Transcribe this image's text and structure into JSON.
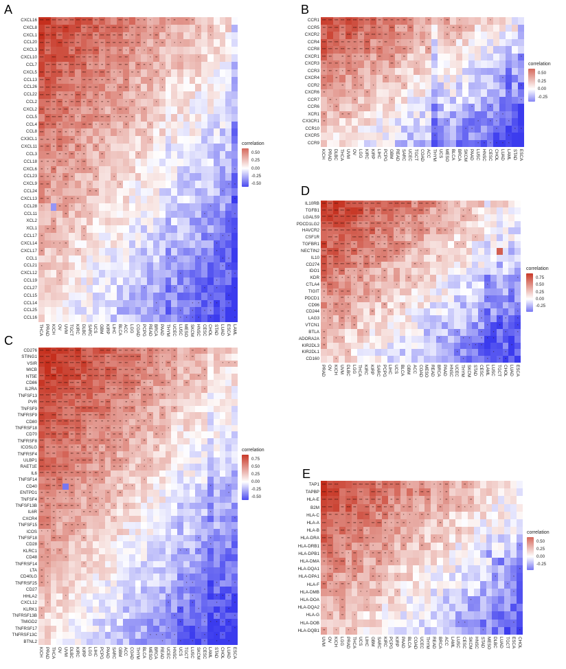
{
  "figure": {
    "background": "#ffffff"
  },
  "colors": {
    "positive_max": "#c52f1d",
    "negative_max": "#3b3bee",
    "mid": "#ffffff",
    "star": "#3d1408"
  },
  "chart_data": [
    {
      "id": "A",
      "type": "heatmap",
      "genes": [
        "CXCL16",
        "CXCL8",
        "CXCL1",
        "CCL20",
        "CXCL3",
        "CXCL10",
        "CCL7",
        "CXCL5",
        "CCL13",
        "CCL26",
        "CCL22",
        "CCL2",
        "CXCL2",
        "CCL5",
        "CCL4",
        "CCL8",
        "CX3CL1",
        "CXCL11",
        "CCL3",
        "CCL18",
        "CXCL6",
        "CCL23",
        "CXCL9",
        "CCL24",
        "CXCL13",
        "CCL28",
        "CCL11",
        "XCL2",
        "XCL1",
        "CCL17",
        "CXCL14",
        "CXCL17",
        "CCL1",
        "CCL21",
        "CXCL12",
        "CCL19",
        "CCL27",
        "CCL15",
        "CCL14",
        "CCL25",
        "CCL16"
      ],
      "cancers": [
        "THCA",
        "PRAD",
        "KICH",
        "OV",
        "UVM",
        "TGCT",
        "KIRC",
        "DLBC",
        "SARC",
        "UCS",
        "GBM",
        "KIRP",
        "LIHC",
        "BLCA",
        "ACC",
        "LGG",
        "COAD",
        "PCPG",
        "READ",
        "BRCA",
        "PAAD",
        "THYM",
        "UCEC",
        "LUSC",
        "MESO",
        "SKCM",
        "HNSC",
        "CESC",
        "CHOL",
        "STAD",
        "LUAD",
        "ESCA",
        "LAML"
      ],
      "legend": {
        "title": "correlation",
        "vmax": 0.65,
        "vmin": -0.6,
        "ticks": [
          {
            "label": "0.50",
            "value": 0.5
          },
          {
            "label": "0.25",
            "value": 0.25
          },
          {
            "label": "0.00",
            "value": 0
          },
          {
            "label": "-0.25",
            "value": -0.25
          },
          {
            "label": "-0.50",
            "value": -0.5
          }
        ]
      },
      "pattern": {
        "v0": 0.85,
        "col_span": 0.75,
        "row_span": 0.75,
        "noise": 0.16,
        "seed": 11,
        "col_bias": {
          "LAML": -0.2,
          "THYM": -0.08
        }
      },
      "outliers": [
        {
          "gene": "CXCL12",
          "cancer": "LAML",
          "v": -0.55
        },
        {
          "gene": "CCL28",
          "cancer": "KICH",
          "v": -0.35
        },
        {
          "gene": "CCL25",
          "cancer": "LUAD",
          "v": -0.5
        }
      ]
    },
    {
      "id": "B",
      "type": "heatmap",
      "genes": [
        "CCR1",
        "CCR5",
        "CXCR2",
        "CCR4",
        "CCR8",
        "CXCR1",
        "CXCR3",
        "CCR3",
        "CXCR4",
        "CCR2",
        "CXCR6",
        "CCR7",
        "CCR6",
        "XCR1",
        "CX3CR1",
        "CCR10",
        "CXCR5",
        "CCR9"
      ],
      "cancers": [
        "KICH",
        "PRAD",
        "DLBC",
        "THCA",
        "UVM",
        "OV",
        "LGG",
        "KIRC",
        "KIRP",
        "LIHC",
        "PCPG",
        "GBM",
        "READ",
        "SARC",
        "UCEC",
        "TGCT",
        "COAD",
        "ACC",
        "THYM",
        "UCS",
        "MESO",
        "BLCA",
        "BRCA",
        "SKCM",
        "PAAD",
        "LUSC",
        "HNSC",
        "CESC",
        "CHOL",
        "LUAD",
        "LAML",
        "STAD",
        "ESCA"
      ],
      "legend": {
        "title": "correlation",
        "vmax": 0.65,
        "vmin": -0.4,
        "ticks": [
          {
            "label": "0.50",
            "value": 0.5
          },
          {
            "label": "0.25",
            "value": 0.25
          },
          {
            "label": "0.00",
            "value": 0
          },
          {
            "label": "-0.25",
            "value": -0.25
          }
        ]
      },
      "pattern": {
        "v0": 0.8,
        "col_span": 0.8,
        "row_span": 0.65,
        "noise": 0.18,
        "seed": 22,
        "col_bias": {
          "THYM": -0.3,
          "LAML": -0.12,
          "ESCA": -0.12,
          "UCS": -0.1
        }
      },
      "outliers": [
        {
          "gene": "CCR9",
          "cancer": "THYM",
          "v": -0.6
        },
        {
          "gene": "CCR10",
          "cancer": "THYM",
          "v": -0.45
        }
      ]
    },
    {
      "id": "C",
      "type": "heatmap",
      "genes": [
        "CD276",
        "STING1",
        "VSIR",
        "MICB",
        "NT5E",
        "CD86",
        "IL2RA",
        "TNFSF13",
        "PVR",
        "TNFSF9",
        "TNFRSF9",
        "CD80",
        "TNFRSF18",
        "CD70",
        "TNFRSF8",
        "ICOSLG",
        "TNFRSF4",
        "ULBP1",
        "RAET1E",
        "IL6",
        "TNFSF14",
        "CD40",
        "ENTPD1",
        "TNFSF4",
        "TNFSF13B",
        "IL6R",
        "CXCR4",
        "TNFSF15",
        "ICOS",
        "TNFSF18",
        "CD28",
        "KLRC1",
        "CD48",
        "TNFRSF14",
        "LTA",
        "CD40LG",
        "TNFRSF25",
        "CD27",
        "HHLA2",
        "CXCL12",
        "KLRK1",
        "TNFRSF13B",
        "TMIGD2",
        "TNFRSF17",
        "TNFRSF13C",
        "BTNL2"
      ],
      "cancers": [
        "KICH",
        "PRAD",
        "THCA",
        "OV",
        "UVM",
        "DLBC",
        "KIRC",
        "KIRP",
        "LGG",
        "LIHC",
        "PCPG",
        "PAAD",
        "SARC",
        "GBM",
        "ACC",
        "COAD",
        "THYM",
        "BLCA",
        "MESO",
        "BRCA",
        "READ",
        "UCEC",
        "HNSC",
        "UCS",
        "TGCT",
        "LUSC",
        "SKCM",
        "CESC",
        "LAML",
        "STAD",
        "CHOL",
        "LUAD",
        "ESCA"
      ],
      "legend": {
        "title": "correlation",
        "vmax": 0.9,
        "vmin": -0.6,
        "ticks": [
          {
            "label": "0.75",
            "value": 0.75
          },
          {
            "label": "0.50",
            "value": 0.5
          },
          {
            "label": "0.25",
            "value": 0.25
          },
          {
            "label": "0.00",
            "value": 0
          },
          {
            "label": "-0.25",
            "value": -0.25
          },
          {
            "label": "-0.50",
            "value": -0.5
          }
        ]
      },
      "pattern": {
        "v0": 0.95,
        "col_span": 0.8,
        "row_span": 0.85,
        "noise": 0.15,
        "seed": 33,
        "col_bias": {
          "LAML": -0.15,
          "UCS": -0.08
        }
      },
      "outliers": [
        {
          "gene": "KLRK1",
          "cancer": "LAML",
          "v": -0.5
        },
        {
          "gene": "CD40",
          "cancer": "UVM",
          "v": -0.45
        },
        {
          "gene": "CXCL12",
          "cancer": "LAML",
          "v": -0.45
        }
      ]
    },
    {
      "id": "D",
      "type": "heatmap",
      "genes": [
        "IL10RB",
        "TGFB1",
        "LGALS9",
        "PDCD1LG2",
        "HAVCR2",
        "CSF1R",
        "TGFBR1",
        "NECTIN2",
        "IL10",
        "CD274",
        "IDO1",
        "KDR",
        "CTLA4",
        "TIGIT",
        "PDCD1",
        "CD96",
        "CD244",
        "LAG3",
        "VTCN1",
        "BTLA",
        "ADORA2A",
        "KIR2DL3",
        "KIR2DL1",
        "CD160"
      ],
      "cancers": [
        "PRAD",
        "OV",
        "KICH",
        "UVM",
        "DLBC",
        "LGG",
        "THCA",
        "KIRC",
        "KIRP",
        "SARC",
        "PCPG",
        "LIHC",
        "UCS",
        "BLCA",
        "GBM",
        "ACC",
        "COAD",
        "MESO",
        "READ",
        "BRCA",
        "PAAD",
        "HNSC",
        "UCEC",
        "THYM",
        "SKCM",
        "STAD",
        "CESC",
        "LAML",
        "LUSC",
        "TGCT",
        "CHOL",
        "LUAD",
        "ESCA"
      ],
      "legend": {
        "title": "correlation",
        "vmax": 0.9,
        "vmin": -0.45,
        "ticks": [
          {
            "label": "0.75",
            "value": 0.75
          },
          {
            "label": "0.50",
            "value": 0.5
          },
          {
            "label": "0.25",
            "value": 0.25
          },
          {
            "label": "0.00",
            "value": 0
          },
          {
            "label": "-0.25",
            "value": -0.25
          }
        ]
      },
      "pattern": {
        "v0": 0.9,
        "col_span": 0.85,
        "row_span": 0.7,
        "noise": 0.18,
        "seed": 44,
        "col_bias": {
          "LAML": -0.15,
          "TGCT": -0.08,
          "LUSC": -0.05
        }
      },
      "outliers": [
        {
          "gene": "NECTIN2",
          "cancer": "TGCT",
          "v": 0.7
        },
        {
          "gene": "KDR",
          "cancer": "LAML",
          "v": -0.5
        },
        {
          "gene": "CTLA4",
          "cancer": "LAML",
          "v": -0.45
        }
      ]
    },
    {
      "id": "E",
      "type": "heatmap",
      "genes": [
        "TAP1",
        "TAPBP",
        "HLA-E",
        "B2M",
        "HLA-C",
        "HLA-A",
        "HLA-B",
        "HLA-DRA",
        "HLA-DRB1",
        "HLA-DPB1",
        "HLA-DMA",
        "HLA-DQA1",
        "HLA-DPA1",
        "HLA-F",
        "HLA-DMB",
        "HLA-DOA",
        "HLA-DQA2",
        "HLA-G",
        "HLA-DOB",
        "HLA-DQB1"
      ],
      "cancers": [
        "UVM",
        "OV",
        "KICH",
        "LGG",
        "PRAD",
        "THCA",
        "UCS",
        "LIHC",
        "GBM",
        "SARC",
        "KIRC",
        "PCPG",
        "KIRP",
        "PAAD",
        "BLCA",
        "COAD",
        "UCEC",
        "THYM",
        "READ",
        "BRCA",
        "ACC",
        "LAML",
        "LUSC",
        "CESC",
        "SKCM",
        "HNSC",
        "STAD",
        "MESO",
        "DLBC",
        "LUAD",
        "TGCT",
        "ESCA",
        "CHOL"
      ],
      "legend": {
        "title": "correlation",
        "vmax": 0.65,
        "vmin": -0.45,
        "ticks": [
          {
            "label": "0.50",
            "value": 0.5
          },
          {
            "label": "0.25",
            "value": 0.25
          },
          {
            "label": "0.00",
            "value": 0
          },
          {
            "label": "-0.25",
            "value": -0.25
          }
        ]
      },
      "pattern": {
        "v0": 0.85,
        "col_span": 0.8,
        "row_span": 0.6,
        "noise": 0.18,
        "seed": 55,
        "col_bias": {
          "CHOL": -0.05,
          "DLBC": -0.05
        }
      },
      "outliers": [
        {
          "gene": "HLA-DMA",
          "cancer": "LUAD",
          "v": -0.5
        },
        {
          "gene": "HLA-DPB1",
          "cancer": "MESO",
          "v": -0.4
        }
      ]
    }
  ]
}
